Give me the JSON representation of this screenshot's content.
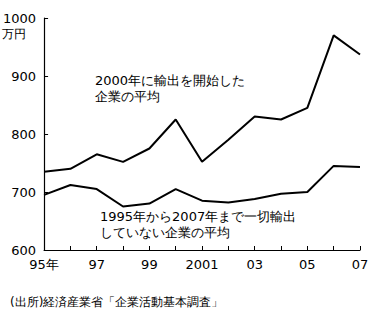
{
  "chart_data": {
    "type": "line",
    "ylabel": "万円",
    "caption": "(出所)経済産業省「企業活動基本調査」",
    "categories": [
      "95年",
      null,
      "97",
      null,
      "99",
      null,
      "2001",
      null,
      "03",
      null,
      "05",
      null,
      "07"
    ],
    "series": [
      {
        "name": "2000年に輸出を開始した\n企業の平均",
        "color": "#000000",
        "line_style": "solid",
        "values": [
          735,
          740,
          765,
          752,
          775,
          825,
          752,
          790,
          830,
          825,
          845,
          970,
          937
        ]
      },
      {
        "name": "1995年から2007年まで一切輸出\nしていない企業の平均",
        "color": "#000000",
        "line_style": "solid",
        "values": [
          695,
          712,
          705,
          675,
          680,
          705,
          685,
          682,
          688,
          697,
          700,
          745,
          743
        ]
      }
    ],
    "ylim": [
      600,
      1000
    ],
    "yticks": [
      600,
      700,
      800,
      900,
      1000
    ],
    "grid": false
  }
}
